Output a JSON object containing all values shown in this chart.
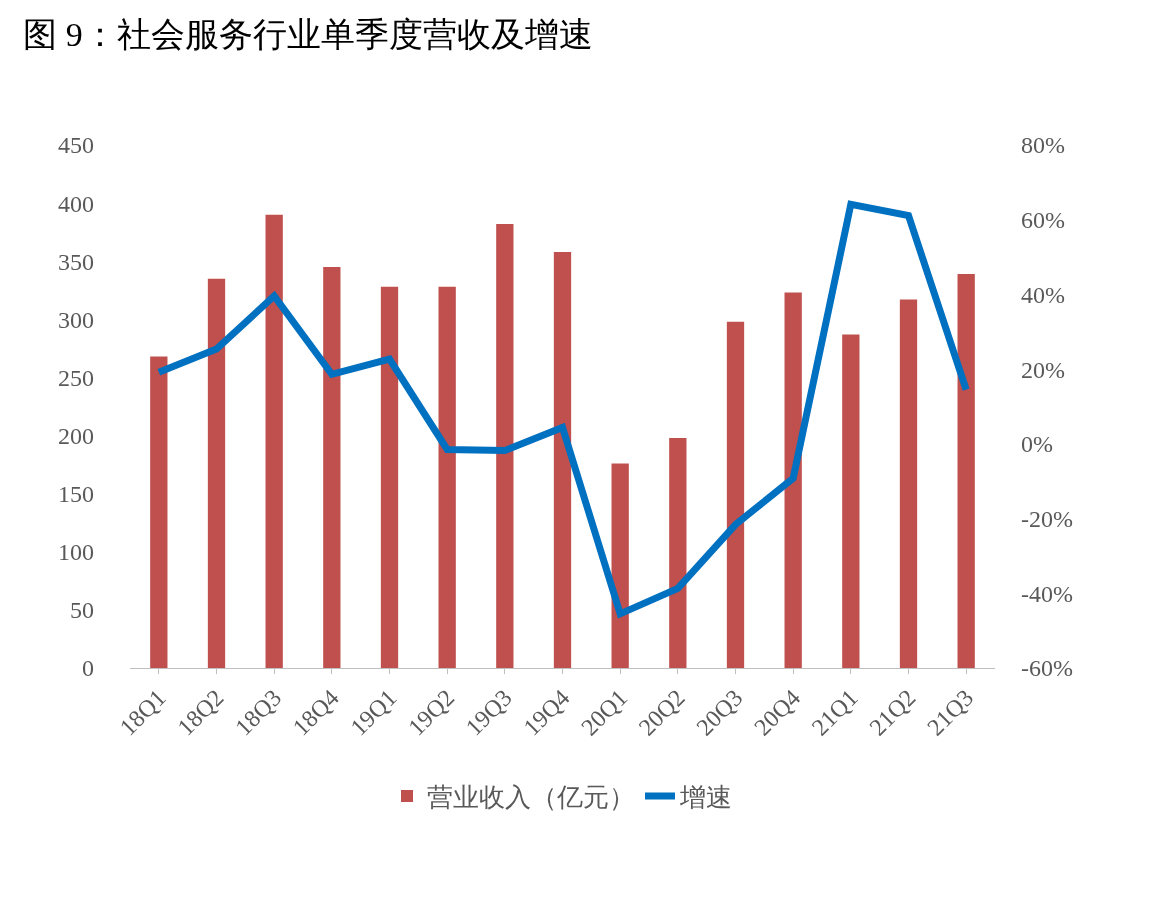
{
  "chart_data": {
    "type": "bar",
    "title": "图 9：社会服务行业单季度营收及增速",
    "categories": [
      "18Q1",
      "18Q2",
      "18Q3",
      "18Q4",
      "19Q1",
      "19Q2",
      "19Q3",
      "19Q4",
      "20Q1",
      "20Q2",
      "20Q3",
      "20Q4",
      "21Q1",
      "21Q2",
      "21Q3"
    ],
    "series": [
      {
        "name": "营业收入（亿元）",
        "color": "#c0504d",
        "values": [
          268,
          335,
          390,
          345,
          328,
          328,
          382,
          358,
          176,
          198,
          298,
          323,
          287,
          317,
          339
        ]
      },
      {
        "name": "增速",
        "type": "line",
        "axis": "y2",
        "color": "#0070c0",
        "values": [
          19.2,
          25.4,
          39.6,
          18.6,
          22.7,
          -1.5,
          -1.8,
          4.4,
          -45.5,
          -38.7,
          -21.6,
          -9.2,
          64.1,
          61.1,
          14.5
        ]
      }
    ],
    "ylim": [
      0,
      450
    ],
    "yticks": [
      0,
      50,
      100,
      150,
      200,
      250,
      300,
      350,
      400,
      450
    ],
    "y2lim": [
      -60,
      80
    ],
    "y2ticks": [
      {
        "value": -60,
        "label": "-60%"
      },
      {
        "value": -40,
        "label": "-40%"
      },
      {
        "value": -20,
        "label": "-20%"
      },
      {
        "value": 0,
        "label": "0%"
      },
      {
        "value": 20,
        "label": "20%"
      },
      {
        "value": 40,
        "label": "40%"
      },
      {
        "value": 60,
        "label": "60%"
      },
      {
        "value": 80,
        "label": "80%"
      }
    ],
    "grid": false,
    "legend": "bottom",
    "marker": "none",
    "line_style": "solid"
  }
}
